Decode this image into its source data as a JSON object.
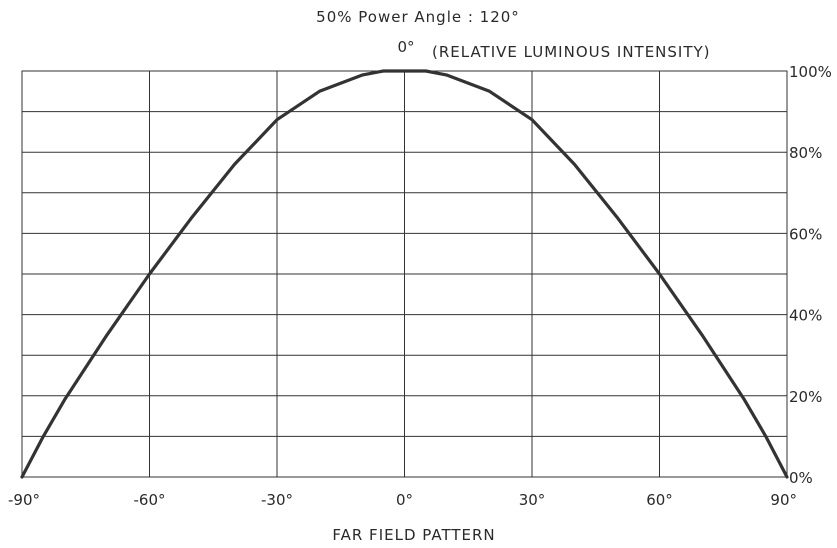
{
  "chart_data": {
    "type": "line",
    "title": "50% Power Angle : 120°",
    "top_axis_label": "0°",
    "ylabel": "(RELATIVE LUMINOUS INTENSITY)",
    "xlabel": "FAR FIELD PATTERN",
    "xlim": [
      -90,
      90
    ],
    "ylim": [
      0,
      100
    ],
    "x_ticks": [
      -90,
      -60,
      -30,
      0,
      30,
      60,
      90
    ],
    "x_tick_labels": [
      "-90°",
      "-60°",
      "-30°",
      "0°",
      "30°",
      "60°",
      "90°"
    ],
    "y_ticks": [
      0,
      20,
      40,
      60,
      80,
      100
    ],
    "y_tick_labels": [
      "0%",
      "20%",
      "40%",
      "60%",
      "80%",
      "100%"
    ],
    "grid": true,
    "series": [
      {
        "x": [
          -90,
          -85,
          -80,
          -70,
          -60,
          -50,
          -40,
          -30,
          -20,
          -10,
          -5,
          0,
          5,
          10,
          20,
          30,
          40,
          50,
          60,
          70,
          80,
          85,
          90
        ],
        "y": [
          0,
          10,
          19,
          35,
          50,
          64,
          77,
          88,
          95,
          99,
          100,
          100,
          100,
          99,
          95,
          88,
          77,
          64,
          50,
          35,
          19,
          10,
          0
        ]
      }
    ]
  },
  "colors": {
    "line": "#333333",
    "grid": "#333333",
    "text": "#2a2a2a"
  }
}
